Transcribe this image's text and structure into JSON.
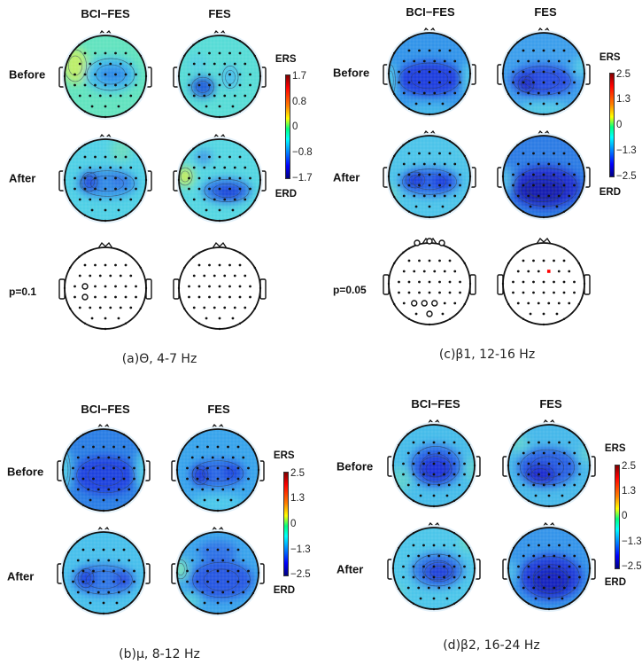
{
  "figure": {
    "column_titles": [
      "BCI−FES",
      "FES"
    ],
    "row_labels": {
      "before": "Before",
      "after": "After"
    },
    "colorbar_labels": {
      "top": "ERS",
      "bottom": "ERD"
    },
    "electrode_rows": [
      5,
      6,
      7,
      7,
      6,
      3
    ],
    "colors": {
      "ers_max": "#800000",
      "zero": "#7fff7f",
      "erd_min": "#000080",
      "background_map_light": "#56e6e0",
      "background_map_deep": "#1f3fe0",
      "significant_red_electrode": "#ff0000"
    }
  },
  "panels": [
    {
      "id": "a",
      "caption": "(a)Θ, 4-7 Hz",
      "band": "Theta",
      "range_hz": "4-7",
      "colorbar": {
        "max": "1.7",
        "mid_high": "0.8",
        "zero": "0",
        "mid_low": "−0.8",
        "min": "−1.7"
      },
      "p_label": "p=0.1",
      "maps": {
        "bci_before": "mild ERD centro-parietal, ERS left temporal",
        "fes_before": "ERD left parietal focus",
        "bci_after": "ERD bilateral central, strongest left",
        "fes_after": "ERD right-centro-parietal, ERS left temporal"
      },
      "significant": {
        "bci": [
          [
            2,
            1
          ],
          [
            3,
            1
          ]
        ],
        "fes": []
      }
    },
    {
      "id": "b",
      "caption": "(b)μ, 8-12 Hz",
      "band": "Mu",
      "range_hz": "8-12",
      "colorbar": {
        "max": "2.5",
        "mid_high": "1.3",
        "zero": "0",
        "mid_low": "−1.3",
        "min": "−2.5"
      },
      "maps": {
        "bci_before": "broad central ERD",
        "fes_before": "bilateral central ERD",
        "bci_after": "bilateral focal ERD",
        "fes_after": "broad central-parietal ERD"
      }
    },
    {
      "id": "c",
      "caption": "(c)β1, 12-16 Hz",
      "band": "Beta1",
      "range_hz": "12-16",
      "colorbar": {
        "max": "2.5",
        "mid_high": "1.3",
        "zero": "0",
        "mid_low": "−1.3",
        "min": "−2.5"
      },
      "p_label": "p=0.05",
      "maps": {
        "bci_before": "broad central ERD",
        "fes_before": "central ERD, left focus",
        "bci_after": "bilateral central ERD",
        "fes_after": "strong widespread centro-parietal ERD"
      },
      "significant": {
        "bci": [
          [
            4,
            1
          ],
          [
            4,
            2
          ],
          [
            4,
            3
          ],
          [
            5,
            1
          ],
          "Fp1",
          "Fpz",
          "Fp2"
        ],
        "fes_red": [
          [
            1,
            3
          ]
        ]
      }
    },
    {
      "id": "d",
      "caption": "(d)β2, 16-24 Hz",
      "band": "Beta2",
      "range_hz": "16-24",
      "colorbar": {
        "max": "2.5",
        "mid_high": "1.3",
        "zero": "0",
        "mid_low": "−1.3",
        "min": "−2.5"
      },
      "maps": {
        "bci_before": "central ERD",
        "fes_before": "left-central ERD",
        "bci_after": "central ERD",
        "fes_after": "strong central-parietal ERD"
      }
    }
  ]
}
